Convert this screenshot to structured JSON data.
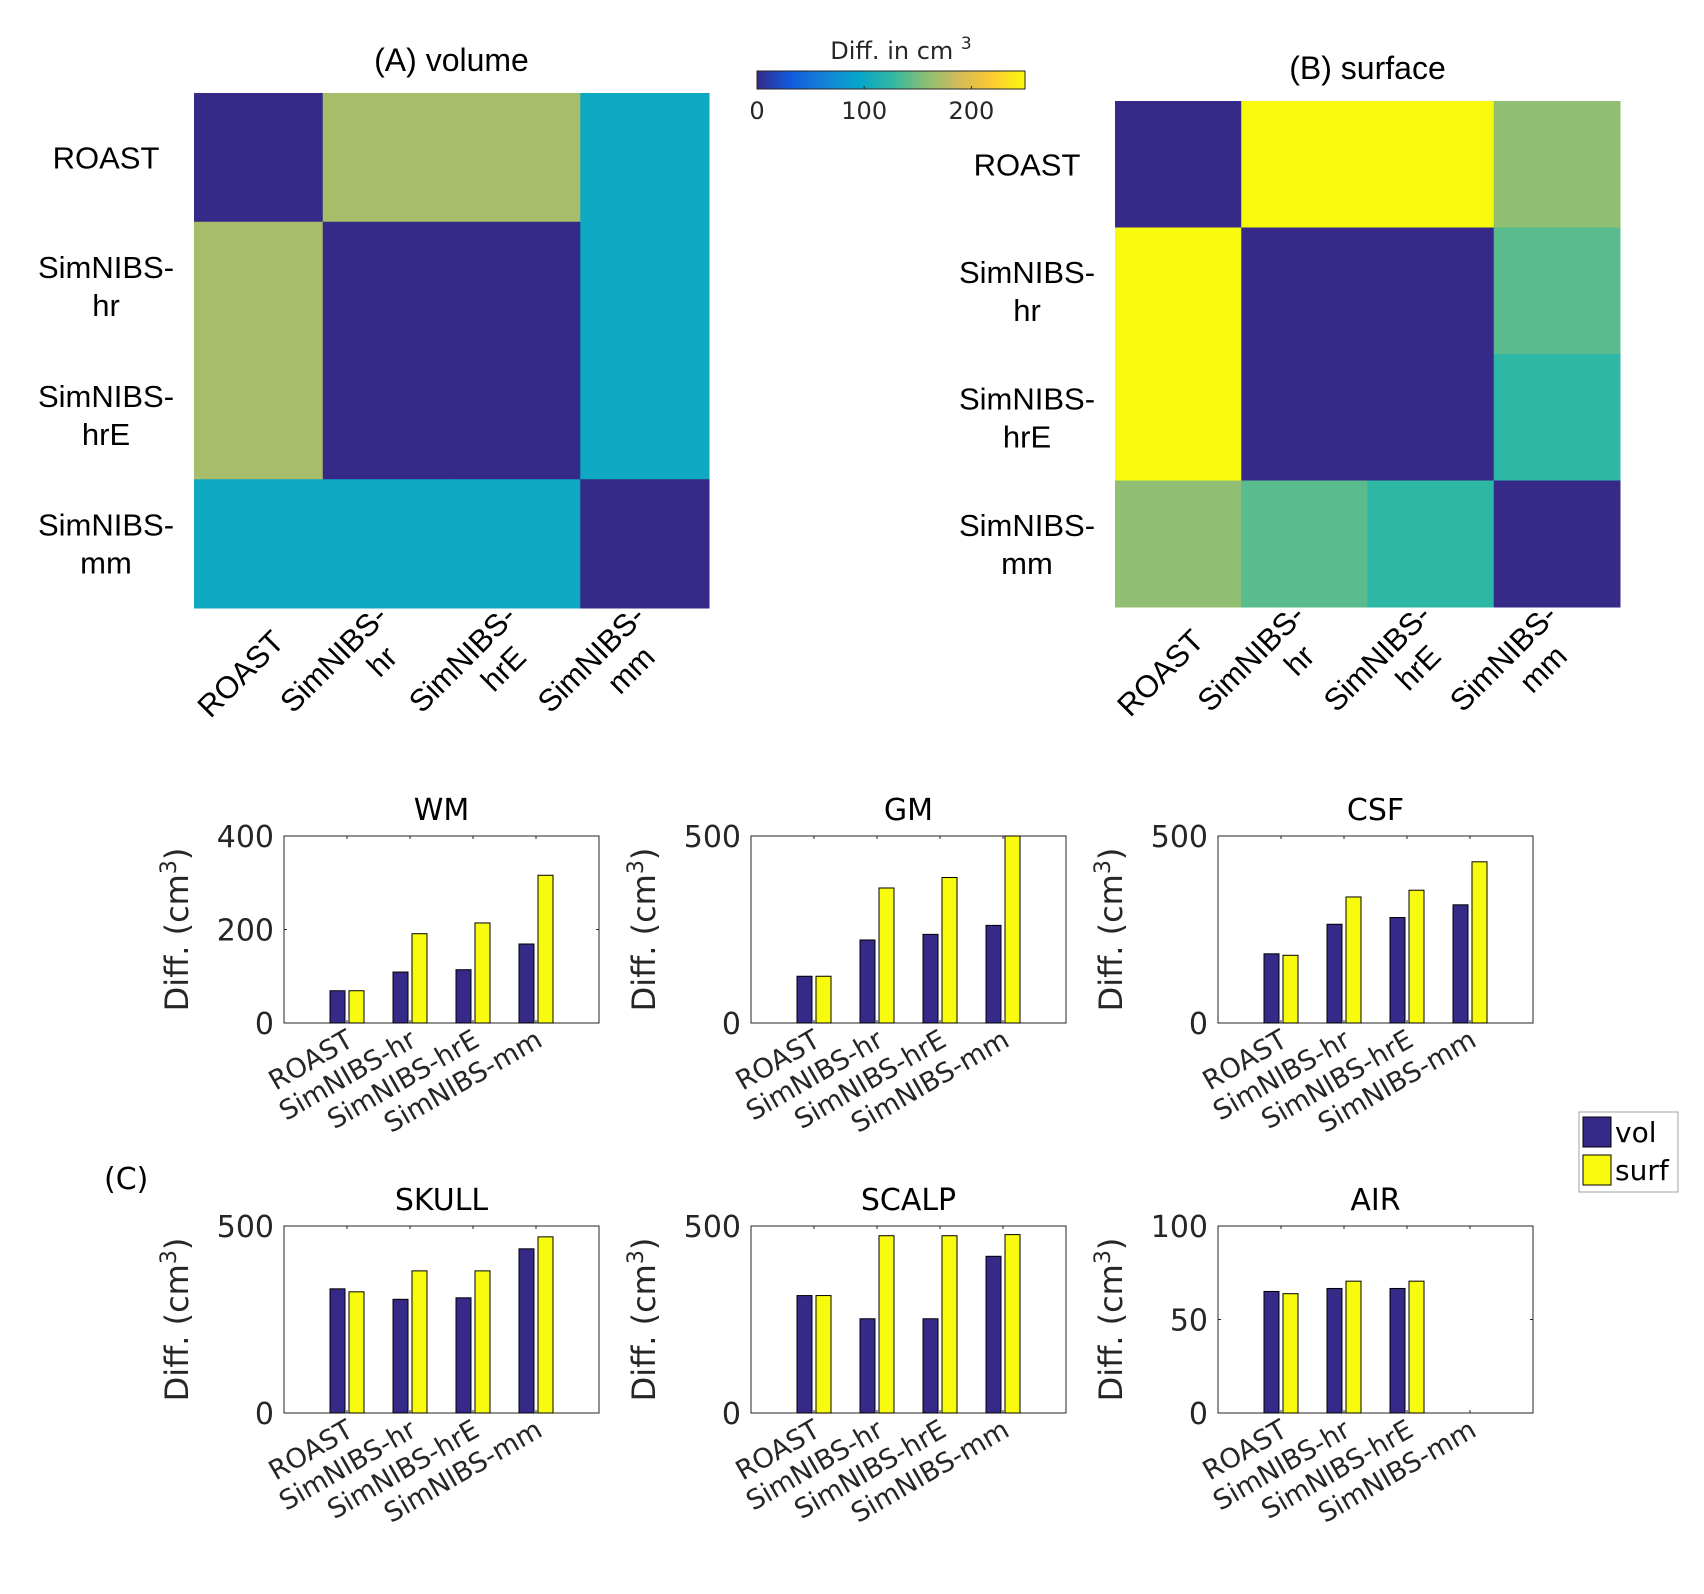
{
  "chart_data": [
    {
      "type": "heatmap",
      "title": "(A) volume",
      "rows": [
        "ROAST",
        "SimNIBS-hr",
        "SimNIBS-hrE",
        "SimNIBS-mm"
      ],
      "cols": [
        "ROAST",
        "SimNIBS-hr",
        "SimNIBS-hrE",
        "SimNIBS-mm"
      ],
      "row_labels": [
        [
          "ROAST"
        ],
        [
          "SimNIBS-",
          "hr"
        ],
        [
          "SimNIBS-",
          "hrE"
        ],
        [
          "SimNIBS-",
          "mm"
        ]
      ],
      "col_labels": [
        [
          "ROAST"
        ],
        [
          "SimNIBS-",
          "hr"
        ],
        [
          "SimNIBS-",
          "hrE"
        ],
        [
          "SimNIBS-",
          "mm"
        ]
      ],
      "values": [
        [
          0,
          170,
          170,
          100
        ],
        [
          170,
          0,
          0,
          100
        ],
        [
          170,
          0,
          0,
          100
        ],
        [
          100,
          100,
          100,
          0
        ]
      ]
    },
    {
      "type": "heatmap",
      "title": "(B) surface",
      "rows": [
        "ROAST",
        "SimNIBS-hr",
        "SimNIBS-hrE",
        "SimNIBS-mm"
      ],
      "cols": [
        "ROAST",
        "SimNIBS-hr",
        "SimNIBS-hrE",
        "SimNIBS-mm"
      ],
      "row_labels": [
        [
          "ROAST"
        ],
        [
          "SimNIBS-",
          "hr"
        ],
        [
          "SimNIBS-",
          "hrE"
        ],
        [
          "SimNIBS-",
          "mm"
        ]
      ],
      "col_labels": [
        [
          "ROAST"
        ],
        [
          "SimNIBS-",
          "hr"
        ],
        [
          "SimNIBS-",
          "hrE"
        ],
        [
          "SimNIBS-",
          "mm"
        ]
      ],
      "values": [
        [
          0,
          250,
          250,
          160
        ],
        [
          250,
          0,
          0,
          140
        ],
        [
          250,
          0,
          0,
          125
        ],
        [
          160,
          140,
          125,
          0
        ]
      ]
    },
    {
      "type": "colorbar",
      "title": "Diff. in cm",
      "title_superscript": "3",
      "range": [
        0,
        250
      ],
      "ticks": [
        0,
        100,
        200
      ],
      "colormap": [
        "#352a87",
        "#0f5cdd",
        "#1481d6",
        "#06a4ca",
        "#2eb7a4",
        "#87bf77",
        "#d1bb59",
        "#fec832",
        "#f9fb0e"
      ]
    },
    {
      "type": "bar",
      "panel_label": "(C)",
      "categories": [
        "ROAST",
        "SimNIBS-hr",
        "SimNIBS-hrE",
        "SimNIBS-mm"
      ],
      "ylabel": "Diff. (cm3)",
      "legend": {
        "position": "right",
        "entries": [
          {
            "name": "vol",
            "color": "#352a87"
          },
          {
            "name": "surf",
            "color": "#f9fb0e"
          }
        ]
      },
      "subplots": [
        {
          "title": "WM",
          "ylim": [
            0,
            400
          ],
          "yticks": [
            0,
            200,
            400
          ],
          "series": [
            {
              "name": "vol",
              "values": [
                69,
                109,
                114,
                169
              ]
            },
            {
              "name": "surf",
              "values": [
                69,
                191,
                214,
                316
              ]
            }
          ]
        },
        {
          "title": "GM",
          "ylim": [
            0,
            500
          ],
          "yticks": [
            0,
            500
          ],
          "series": [
            {
              "name": "vol",
              "values": [
                125,
                222,
                237,
                261
              ]
            },
            {
              "name": "surf",
              "values": [
                125,
                361,
                389,
                500
              ]
            }
          ]
        },
        {
          "title": "CSF",
          "ylim": [
            0,
            500
          ],
          "yticks": [
            0,
            500
          ],
          "series": [
            {
              "name": "vol",
              "values": [
                185,
                264,
                282,
                316
              ]
            },
            {
              "name": "surf",
              "values": [
                181,
                337,
                355,
                431
              ]
            }
          ]
        },
        {
          "title": "SKULL",
          "ylim": [
            0,
            500
          ],
          "yticks": [
            0,
            500
          ],
          "series": [
            {
              "name": "vol",
              "values": [
                332,
                304,
                308,
                439
              ]
            },
            {
              "name": "surf",
              "values": [
                324,
                380,
                380,
                471
              ]
            }
          ]
        },
        {
          "title": "SCALP",
          "ylim": [
            0,
            500
          ],
          "yticks": [
            0,
            500
          ],
          "series": [
            {
              "name": "vol",
              "values": [
                314,
                252,
                252,
                419
              ]
            },
            {
              "name": "surf",
              "values": [
                314,
                474,
                474,
                477
              ]
            }
          ]
        },
        {
          "title": "AIR",
          "ylim": [
            0,
            100
          ],
          "yticks": [
            0,
            50,
            100
          ],
          "series": [
            {
              "name": "vol",
              "values": [
                65,
                66.6,
                66.6,
                null
              ]
            },
            {
              "name": "surf",
              "values": [
                63.8,
                70.5,
                70.5,
                null
              ]
            }
          ]
        }
      ]
    }
  ],
  "labels": {
    "ylabel_main": "Diff. (cm",
    "ylabel_sup": "3",
    "ylabel_close": ")"
  }
}
